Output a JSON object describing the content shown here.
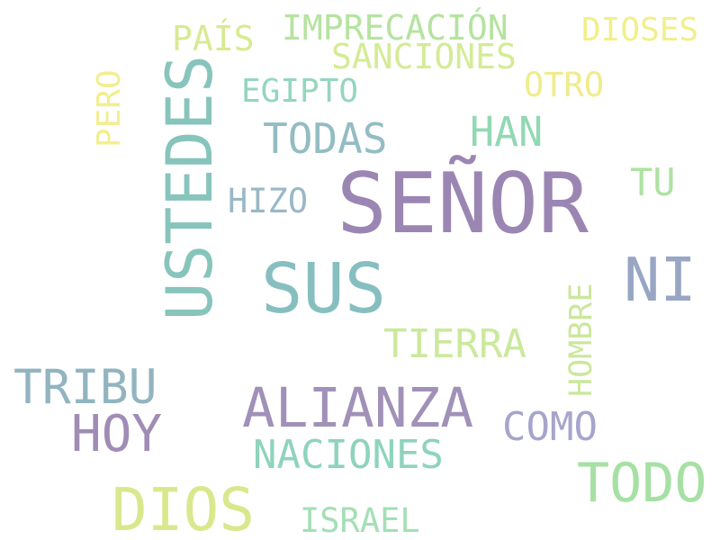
{
  "words": {
    "senor": {
      "text": "SEÑOR",
      "color": "#9b86b3"
    },
    "sus": {
      "text": "SUS",
      "color": "#87bfc0"
    },
    "ustedes": {
      "text": "USTEDES",
      "color": "#87c4bc"
    },
    "ni": {
      "text": "NI",
      "color": "#98a6c4"
    },
    "alianza": {
      "text": "ALIANZA",
      "color": "#a191b8"
    },
    "dios": {
      "text": "DIOS",
      "color": "#d9e88c"
    },
    "todo": {
      "text": "TODO",
      "color": "#a6e0a4"
    },
    "hoy": {
      "text": "HOY",
      "color": "#a08cb5"
    },
    "tribu": {
      "text": "TRIBU",
      "color": "#92b4c0"
    },
    "naciones": {
      "text": "NACIONES",
      "color": "#8ed3bd"
    },
    "tierra": {
      "text": "TIERRA",
      "color": "#cbe99c"
    },
    "como": {
      "text": "COMO",
      "color": "#a5a5cc"
    },
    "todas": {
      "text": "TODAS",
      "color": "#93bcc3"
    },
    "han": {
      "text": "HAN",
      "color": "#92d8b4"
    },
    "imprecacion": {
      "text": "IMPRECACIÓN",
      "color": "#b5e3a0"
    },
    "sanciones": {
      "text": "SANCIONES",
      "color": "#d4eb96"
    },
    "egipto": {
      "text": "EGIPTO",
      "color": "#94d6be"
    },
    "dioses": {
      "text": "DIOSES",
      "color": "#f2ef8a"
    },
    "otro": {
      "text": "OTRO",
      "color": "#f0ec8c"
    },
    "pais": {
      "text": "PAÍS",
      "color": "#d8ea92"
    },
    "pero": {
      "text": "PERO",
      "color": "#f3ee8e"
    },
    "hizo": {
      "text": "HIZO",
      "color": "#9ab8c6"
    },
    "tu": {
      "text": "TU",
      "color": "#aee2a2"
    },
    "hombre": {
      "text": "HOMBRE",
      "color": "#cbe79c"
    },
    "israel": {
      "text": "ISRAEL",
      "color": "#a4dfb6"
    }
  }
}
